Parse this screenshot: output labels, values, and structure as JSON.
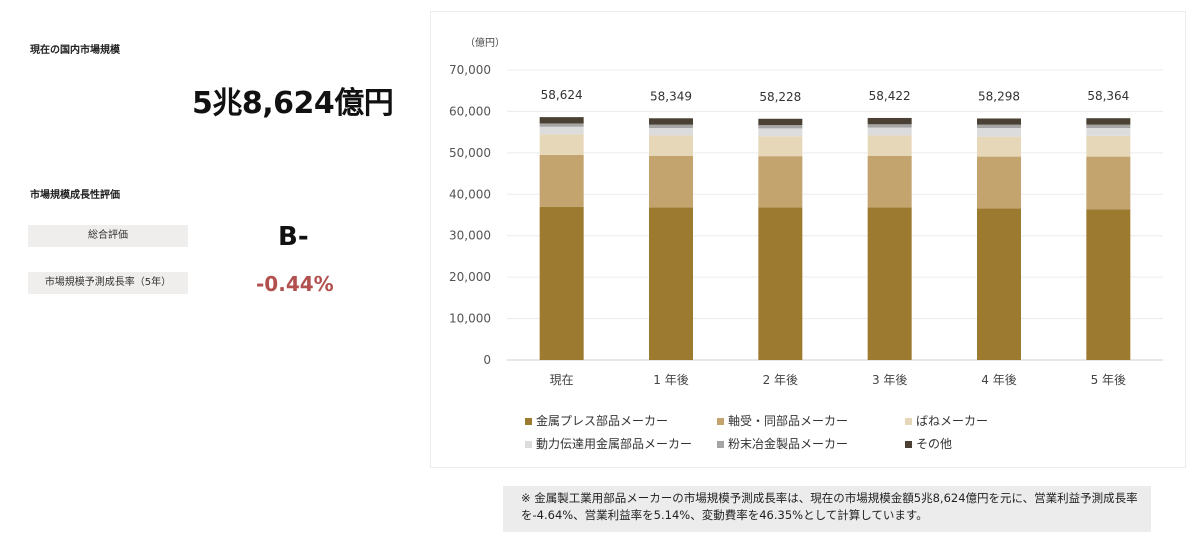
{
  "left": {
    "market_label": "現在の国内市場規模",
    "market_value": "5兆8,624億円",
    "growth_label": "市場規模成長性評価",
    "overall_label": "総合評価",
    "overall_grade": "B-",
    "rate_label": "市場規模予測成長率（5年）",
    "rate_value": "-0.44%"
  },
  "note": {
    "text": "※ 金属製工業用部品メーカーの市場規模予測成長率は、現在の市場規模金額5兆8,624億円を元に、営業利益予測成長率を-4.64%、営業利益率を5.14%、変動費率を46.35%として計算しています。"
  },
  "chart_data": {
    "type": "bar",
    "stacked": true,
    "unit_label": "（億円）",
    "categories": [
      "現在",
      "1 年後",
      "2 年後",
      "3 年後",
      "4 年後",
      "5 年後"
    ],
    "totals": [
      "58,624",
      "58,349",
      "58,228",
      "58,422",
      "58,298",
      "58,364"
    ],
    "ylim": [
      0,
      70000
    ],
    "yticks": [
      "0",
      "10,000",
      "20,000",
      "30,000",
      "40,000",
      "50,000",
      "60,000",
      "70,000"
    ],
    "grid": true,
    "legend_position": "bottom",
    "series": [
      {
        "name": "金属プレス部品メーカー",
        "color": "#9c7a2f",
        "values": [
          37000,
          36800,
          36800,
          36800,
          36600,
          36400
        ]
      },
      {
        "name": "軸受・同部品メーカー",
        "color": "#c4a46e",
        "values": [
          12500,
          12500,
          12400,
          12500,
          12500,
          12700
        ]
      },
      {
        "name": "ばねメーカー",
        "color": "#e7d7b9",
        "values": [
          5000,
          4900,
          4800,
          4900,
          4800,
          5000
        ]
      },
      {
        "name": "動力伝達用金属部品メーカー",
        "color": "#dddcdc",
        "values": [
          1800,
          1800,
          1900,
          1900,
          2100,
          1900
        ]
      },
      {
        "name": "粉末冶金製品メーカー",
        "color": "#a6a5a4",
        "values": [
          800,
          800,
          800,
          800,
          800,
          800
        ]
      },
      {
        "name": "その他",
        "color": "#4a4134",
        "values": [
          1524,
          1549,
          1528,
          1522,
          1498,
          1564
        ]
      }
    ]
  }
}
